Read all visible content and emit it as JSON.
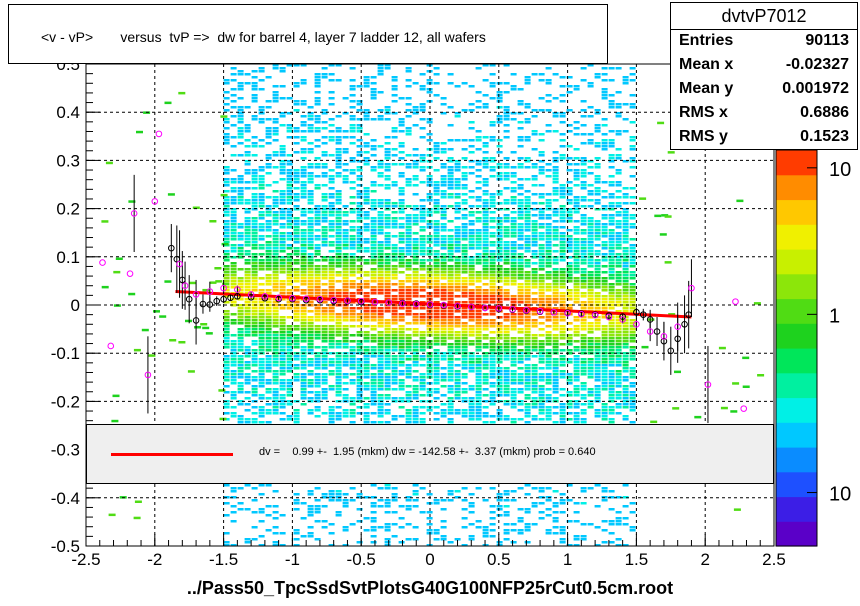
{
  "title": "<v - vP>       versus  tvP =>  dw for barrel 4, layer 7 ladder 12, all wafers",
  "x_axis_title": "../Pass50_TpcSsdSvtPlotsG40G100NFP25rCut0.5cm.root",
  "stats": {
    "name": "dvtvP7012",
    "rows": [
      {
        "key": "Entries",
        "value": "90113"
      },
      {
        "key": "Mean x",
        "value": "-0.02327"
      },
      {
        "key": "Mean y",
        "value": "0.001972"
      },
      {
        "key": "RMS x",
        "value": "0.6886"
      },
      {
        "key": "RMS y",
        "value": "0.1523"
      }
    ]
  },
  "legend": {
    "text": "dv =    0.99 +-  1.95 (mkm) dw = -142.58 +-  3.37 (mkm) prob = 0.640",
    "line_color": "#ff0000"
  },
  "colors": {
    "frame": "#000000",
    "grid": "#000000",
    "fit_line": "#ff0000",
    "profile_black": "#000000",
    "profile_magenta": "#ff00ff",
    "palette": [
      "#5a00c8",
      "#3c1ee6",
      "#1e50ff",
      "#0a8cff",
      "#00c8ff",
      "#00f0e6",
      "#00f0a0",
      "#00e65a",
      "#1ed21e",
      "#50dc14",
      "#8ce60a",
      "#c8f000",
      "#f0f000",
      "#ffc800",
      "#ff8c00",
      "#ff3c00"
    ]
  },
  "chart_data": {
    "type": "heatmap",
    "xlim": [
      -2.5,
      2.5
    ],
    "ylim": [
      -0.5,
      0.5
    ],
    "x_ticks": [
      -2.5,
      -2,
      -1.5,
      -1,
      -0.5,
      0,
      0.5,
      1,
      1.5,
      2,
      2.5
    ],
    "x_tick_labels": [
      "-2.5",
      "-2",
      "-1.5",
      "-1",
      "-0.5",
      "0",
      "0.5",
      "1",
      "1.5",
      "2",
      "2.5"
    ],
    "y_ticks": [
      -0.5,
      -0.4,
      -0.3,
      -0.2,
      -0.1,
      0,
      0.1,
      0.2,
      0.3,
      0.4,
      0.5
    ],
    "y_tick_labels": [
      "-0.5",
      "-0.4",
      "-0.3",
      "-0.2",
      "-0.1",
      "0",
      "0.1",
      "0.2",
      "0.3",
      "0.4",
      "0.5"
    ],
    "grid": true,
    "colorbar": {
      "log_scale": true,
      "labels": [
        {
          "text": "10",
          "frac": 0.955
        },
        {
          "text": "1",
          "frac": 0.585
        },
        {
          "text": "10",
          "frac": 0.135
        }
      ]
    },
    "fit_line": {
      "x": [
        -1.85,
        1.9
      ],
      "y": [
        0.028,
        -0.025
      ]
    },
    "profile_black": {
      "x": [
        -1.88,
        -1.84,
        -1.8,
        -1.75,
        -1.7,
        -1.65,
        -1.6,
        -1.55,
        -1.5,
        -1.45,
        -1.4,
        -1.3,
        -1.2,
        -1.1,
        -1.0,
        -0.9,
        -0.8,
        -0.7,
        -0.6,
        -0.5,
        -0.4,
        -0.3,
        -0.2,
        -0.1,
        0.0,
        0.1,
        0.2,
        0.3,
        0.4,
        0.5,
        0.6,
        0.7,
        0.8,
        0.9,
        1.0,
        1.1,
        1.2,
        1.3,
        1.4,
        1.5,
        1.55,
        1.6,
        1.65,
        1.7,
        1.75,
        1.8,
        1.85,
        1.88
      ],
      "y": [
        0.118,
        0.095,
        0.052,
        0.012,
        -0.032,
        0.002,
        0.001,
        0.008,
        0.012,
        0.015,
        0.018,
        0.016,
        0.014,
        0.012,
        0.012,
        0.01,
        0.01,
        0.008,
        0.008,
        0.006,
        0.006,
        0.005,
        0.004,
        0.003,
        0.0,
        -0.001,
        -0.003,
        -0.004,
        -0.006,
        -0.008,
        -0.01,
        -0.012,
        -0.014,
        -0.015,
        -0.016,
        -0.018,
        -0.02,
        -0.022,
        -0.024,
        -0.015,
        -0.02,
        -0.03,
        -0.055,
        -0.075,
        -0.095,
        -0.07,
        -0.04,
        -0.02
      ],
      "yerr": [
        0.05,
        0.07,
        0.06,
        0.05,
        0.05,
        0.02,
        0.015,
        0.01,
        0.008,
        0.006,
        0.005,
        0.004,
        0.004,
        0.003,
        0.003,
        0.003,
        0.003,
        0.003,
        0.003,
        0.003,
        0.003,
        0.003,
        0.003,
        0.003,
        0.003,
        0.003,
        0.003,
        0.003,
        0.003,
        0.003,
        0.003,
        0.003,
        0.003,
        0.003,
        0.003,
        0.004,
        0.004,
        0.005,
        0.006,
        0.01,
        0.012,
        0.02,
        0.03,
        0.04,
        0.05,
        0.05,
        0.06,
        0.07
      ]
    },
    "profile_magenta": {
      "x": [
        -2.38,
        -2.32,
        -2.18,
        -2.15,
        -2.05,
        -2.0,
        -1.97,
        -1.82,
        -1.78,
        -1.7,
        -1.6,
        -1.5,
        -1.4,
        -1.3,
        -1.2,
        -1.1,
        -1.0,
        -0.9,
        -0.8,
        -0.7,
        -0.6,
        -0.5,
        -0.4,
        -0.3,
        -0.2,
        -0.1,
        0.0,
        0.1,
        0.2,
        0.3,
        0.4,
        0.5,
        0.6,
        0.7,
        0.8,
        0.9,
        1.0,
        1.1,
        1.2,
        1.3,
        1.4,
        1.5,
        1.6,
        1.7,
        1.8,
        1.9,
        2.02,
        2.22,
        2.28
      ],
      "y": [
        0.088,
        -0.085,
        0.065,
        0.19,
        -0.145,
        0.215,
        0.355,
        0.085,
        0.04,
        0.022,
        0.028,
        0.035,
        0.032,
        0.022,
        0.018,
        0.015,
        0.014,
        0.013,
        0.012,
        0.01,
        0.009,
        0.008,
        0.006,
        0.005,
        0.003,
        0.002,
        0.001,
        0.0,
        -0.002,
        -0.004,
        -0.006,
        -0.007,
        -0.009,
        -0.011,
        -0.013,
        -0.015,
        -0.017,
        -0.019,
        -0.021,
        -0.025,
        -0.03,
        -0.04,
        -0.055,
        -0.065,
        -0.045,
        0.035,
        -0.165,
        0.007,
        -0.215
      ],
      "yerr": [
        0.0,
        0.0,
        0.0,
        0.08,
        0.08,
        0.0,
        0.0,
        0.07,
        0.05,
        0.03,
        0.02,
        0.012,
        0.008,
        0.006,
        0.005,
        0.004,
        0.004,
        0.003,
        0.003,
        0.003,
        0.003,
        0.003,
        0.003,
        0.003,
        0.003,
        0.003,
        0.003,
        0.003,
        0.003,
        0.003,
        0.003,
        0.003,
        0.003,
        0.003,
        0.003,
        0.003,
        0.004,
        0.004,
        0.005,
        0.006,
        0.008,
        0.012,
        0.02,
        0.03,
        0.05,
        0.06,
        0.08,
        0.0,
        0.0
      ]
    }
  }
}
